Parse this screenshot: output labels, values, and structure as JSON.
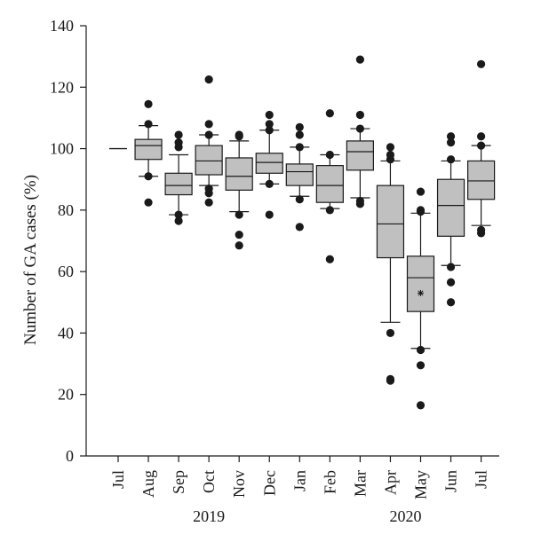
{
  "chart_data": {
    "type": "box",
    "ylabel": "Number of GA cases (%)",
    "ylim": [
      0,
      140
    ],
    "yticks": [
      0,
      20,
      40,
      60,
      80,
      100,
      120,
      140
    ],
    "categories": [
      "Jul",
      "Aug",
      "Sep",
      "Oct",
      "Nov",
      "Dec",
      "Jan",
      "Feb",
      "Mar",
      "Apr",
      "May",
      "Jun",
      "Jul"
    ],
    "year_labels": [
      {
        "label": "2019",
        "position_between": [
          "Sep",
          "Nov"
        ]
      },
      {
        "label": "2020",
        "position_between": [
          "Apr",
          "May"
        ]
      }
    ],
    "colors": {
      "box_fill": "#c0c0c0",
      "stroke": "#1a1a1a",
      "outlier": "#1a1a1a"
    },
    "boxes": [
      {
        "month": "Jul",
        "reference_line": 100
      },
      {
        "month": "Aug",
        "whisker_low": 91,
        "q1": 96.5,
        "median": 101,
        "q3": 103,
        "whisker_high": 107.5,
        "outliers": [
          82.5,
          91,
          108,
          114.5
        ]
      },
      {
        "month": "Sep",
        "whisker_low": 78.5,
        "q1": 85,
        "median": 88,
        "q3": 92,
        "whisker_high": 98,
        "outliers": [
          76.5,
          78.5,
          100.5,
          102,
          104.5
        ]
      },
      {
        "month": "Oct",
        "whisker_low": 88,
        "q1": 91.5,
        "median": 96,
        "q3": 101,
        "whisker_high": 104.5,
        "outliers": [
          82.5,
          85.5,
          87,
          104.5,
          108,
          122.5
        ]
      },
      {
        "month": "Nov",
        "whisker_low": 79.5,
        "q1": 86.5,
        "median": 91,
        "q3": 97,
        "whisker_high": 102.5,
        "outliers": [
          68.5,
          72,
          78.5,
          104,
          104.5
        ]
      },
      {
        "month": "Dec",
        "whisker_low": 88.5,
        "q1": 92,
        "median": 95.5,
        "q3": 98.5,
        "whisker_high": 106,
        "outliers": [
          78.5,
          88.5,
          106,
          108,
          111
        ]
      },
      {
        "month": "Jan",
        "whisker_low": 84.5,
        "q1": 88,
        "median": 92.5,
        "q3": 95,
        "whisker_high": 100.5,
        "outliers": [
          74.5,
          83.5,
          100.5,
          104.5,
          107
        ]
      },
      {
        "month": "Feb",
        "whisker_low": 80.5,
        "q1": 82.5,
        "median": 88,
        "q3": 94.5,
        "whisker_high": 98,
        "outliers": [
          64,
          80,
          98,
          111.5
        ]
      },
      {
        "month": "Mar",
        "whisker_low": 84,
        "q1": 93,
        "median": 99,
        "q3": 102.5,
        "whisker_high": 106.5,
        "outliers": [
          82,
          83,
          106.5,
          111,
          129
        ]
      },
      {
        "month": "Apr",
        "whisker_low": 43.5,
        "q1": 64.5,
        "median": 75.5,
        "q3": 88,
        "whisker_high": 96,
        "outliers": [
          24.5,
          25,
          40,
          96.5,
          98,
          100.5
        ]
      },
      {
        "month": "May",
        "whisker_low": 35,
        "q1": 47,
        "median": 58,
        "q3": 65,
        "whisker_high": 79,
        "mean": 53,
        "outliers": [
          16.5,
          29.5,
          34.5,
          79.5,
          80,
          86
        ]
      },
      {
        "month": "Jun",
        "whisker_low": 62,
        "q1": 71.5,
        "median": 81.5,
        "q3": 90,
        "whisker_high": 96,
        "outliers": [
          50,
          56.5,
          61.5,
          96.5,
          102,
          104
        ]
      },
      {
        "month": "Jul",
        "whisker_low": 75,
        "q1": 83.5,
        "median": 89.5,
        "q3": 96,
        "whisker_high": 101,
        "outliers": [
          72.5,
          73.5,
          101,
          104,
          127.5
        ]
      }
    ]
  }
}
